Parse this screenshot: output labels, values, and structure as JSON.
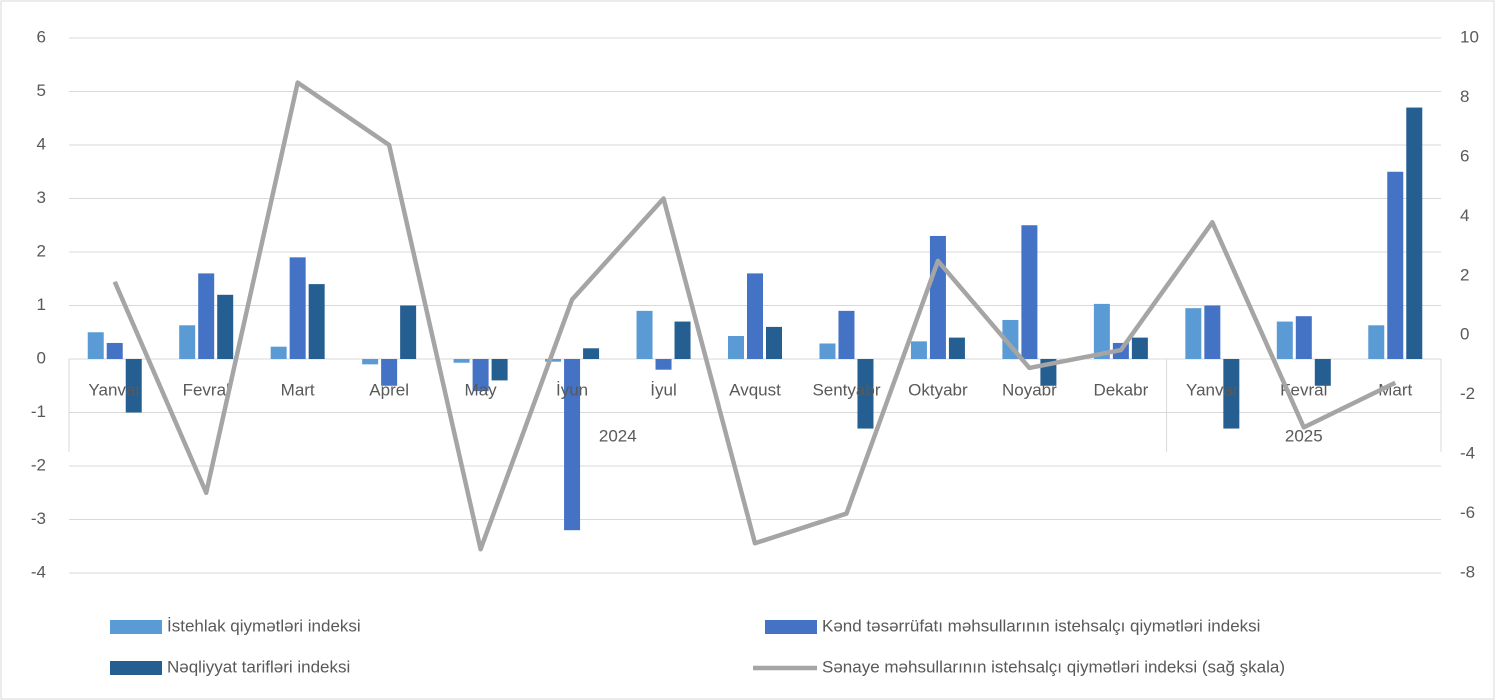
{
  "chart_data": {
    "type": "bar",
    "categories": [
      "Yanvar",
      "Fevral",
      "Mart",
      "Aprel",
      "May",
      "İyun",
      "İyul",
      "Avqust",
      "Sentyabr",
      "Oktyabr",
      "Noyabr",
      "Dekabr",
      "Yanvar",
      "Fevral",
      "Mart"
    ],
    "category_groups": [
      {
        "name": "2024",
        "count": 12
      },
      {
        "name": "2025",
        "count": 3
      }
    ],
    "series": [
      {
        "name": "İstehlak qiymətləri indeksi",
        "color": "#5b9bd5",
        "values": [
          0.5,
          0.63,
          0.23,
          -0.1,
          -0.07,
          -0.05,
          0.9,
          0.43,
          0.29,
          0.33,
          0.73,
          1.03,
          0.95,
          0.7,
          0.63
        ]
      },
      {
        "name": "Kənd təsərrüfatı məhsullarının istehsalçı qiymətləri indeksi",
        "color": "#4472c4",
        "values": [
          0.3,
          1.6,
          1.9,
          -0.5,
          -0.6,
          -3.2,
          -0.2,
          1.6,
          0.9,
          2.3,
          2.5,
          0.3,
          1.0,
          0.8,
          3.5
        ]
      },
      {
        "name": "Nəqliyyat tarifləri indeksi",
        "color": "#255e91",
        "values": [
          -1.0,
          1.2,
          1.4,
          1.0,
          -0.4,
          0.2,
          0.7,
          0.6,
          -1.3,
          0.4,
          -0.5,
          0.4,
          -1.3,
          -0.5,
          4.7
        ]
      },
      {
        "name": "Sənaye məhsullarının istehsalçı qiymətləri indeksi (sağ şkala)",
        "color": "#a5a5a5",
        "type": "line",
        "axis": "y2",
        "values": [
          1.8,
          -5.3,
          8.5,
          6.4,
          -7.2,
          1.2,
          4.6,
          -7.0,
          -6.0,
          2.5,
          -1.1,
          -0.5,
          3.8,
          -3.1,
          -1.6
        ]
      }
    ],
    "ylim": [
      -4,
      6
    ],
    "yticks": [
      -4,
      -3,
      -2,
      -1,
      0,
      1,
      2,
      3,
      4,
      5,
      6
    ],
    "y2lim": [
      -8,
      10
    ],
    "y2ticks": [
      -8,
      -6,
      -4,
      -2,
      0,
      2,
      4,
      6,
      8,
      10
    ],
    "grid": true
  }
}
